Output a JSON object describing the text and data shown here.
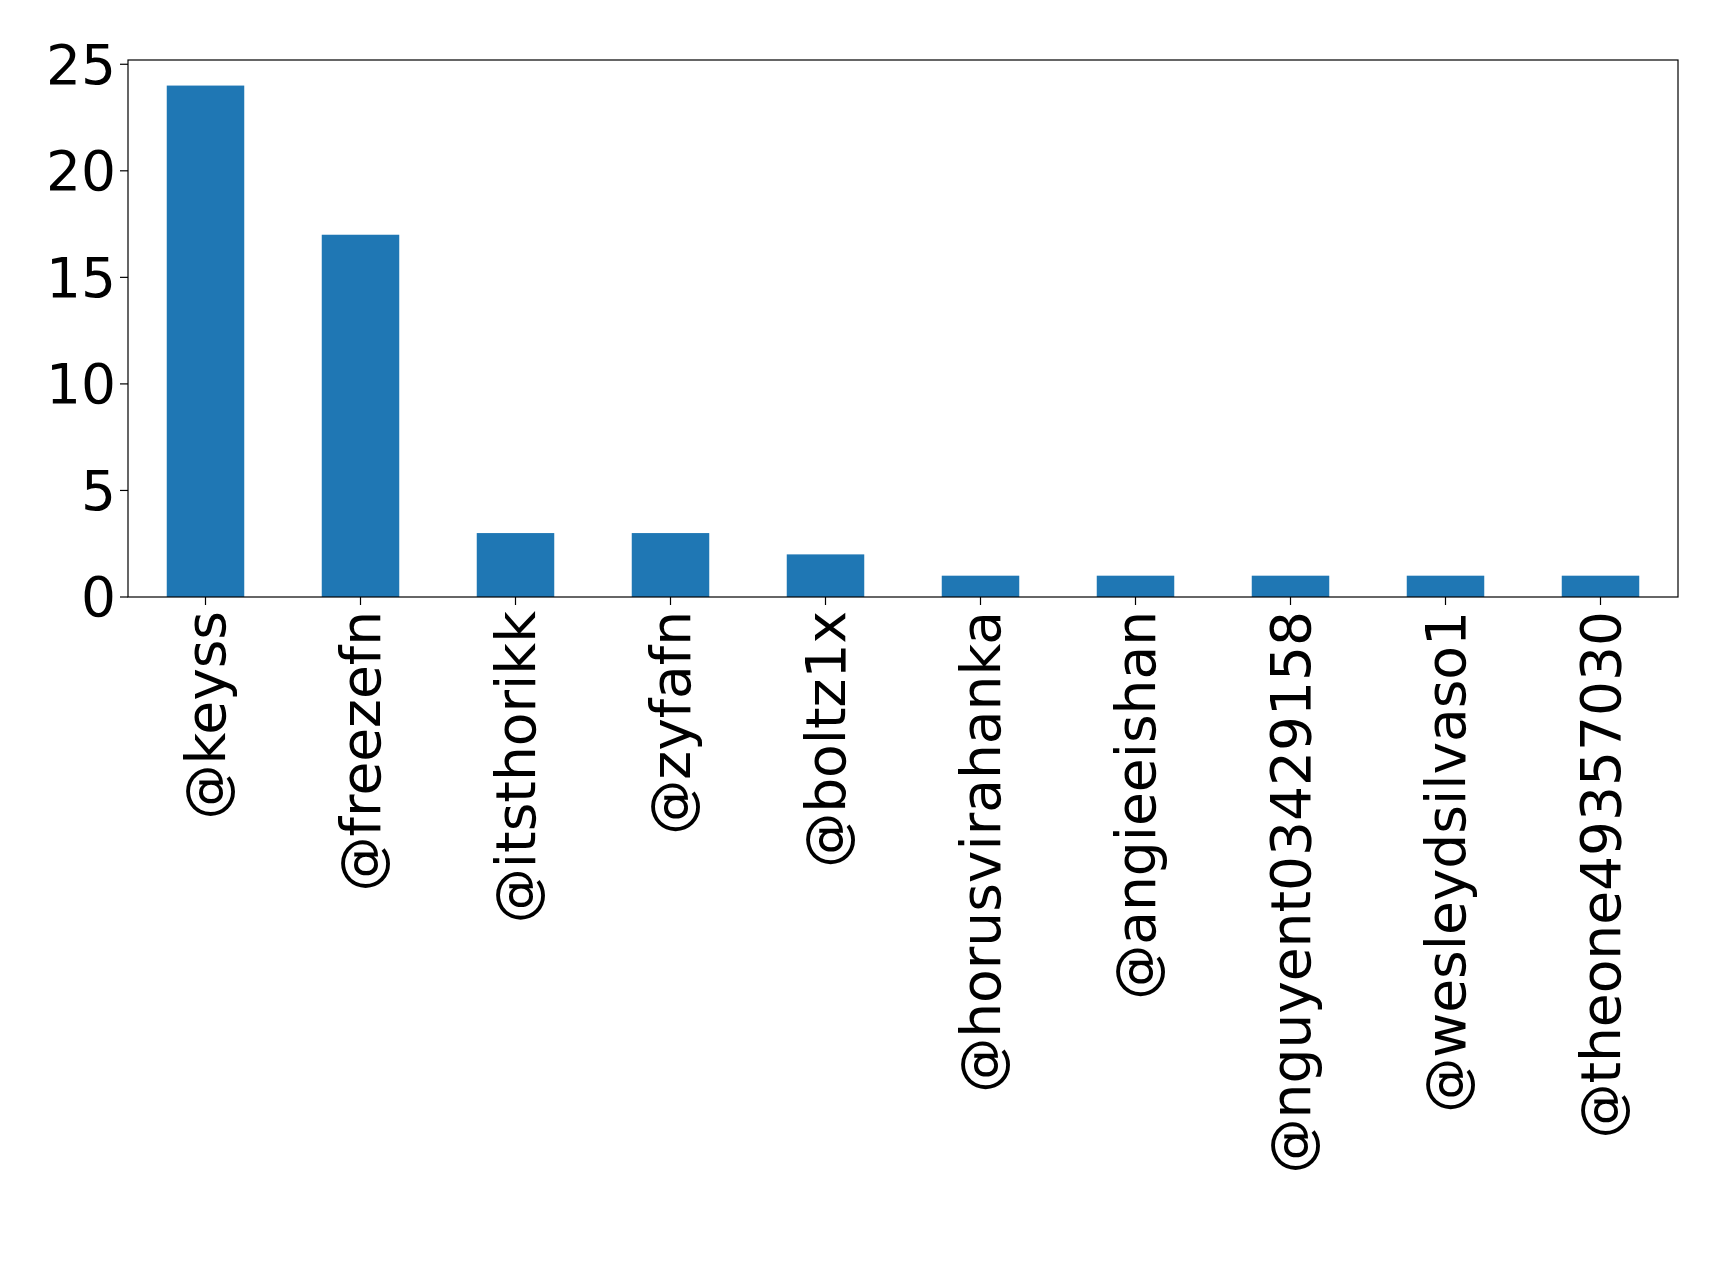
{
  "chart_data": {
    "type": "bar",
    "categories": [
      "@keyss",
      "@freezefn",
      "@itsthorikk",
      "@zyfafn",
      "@boltz1x",
      "@horusvirahanka",
      "@angieeishan",
      "@nguyent03429158",
      "@wesleydsilvaso1",
      "@theone49357030"
    ],
    "values": [
      24,
      17,
      3,
      3,
      2,
      1,
      1,
      1,
      1,
      1
    ],
    "color": "#1f77b4",
    "ylim": [
      0,
      25.2
    ],
    "yticks": [
      0,
      5,
      10,
      15,
      20,
      25
    ],
    "grid": false
  }
}
